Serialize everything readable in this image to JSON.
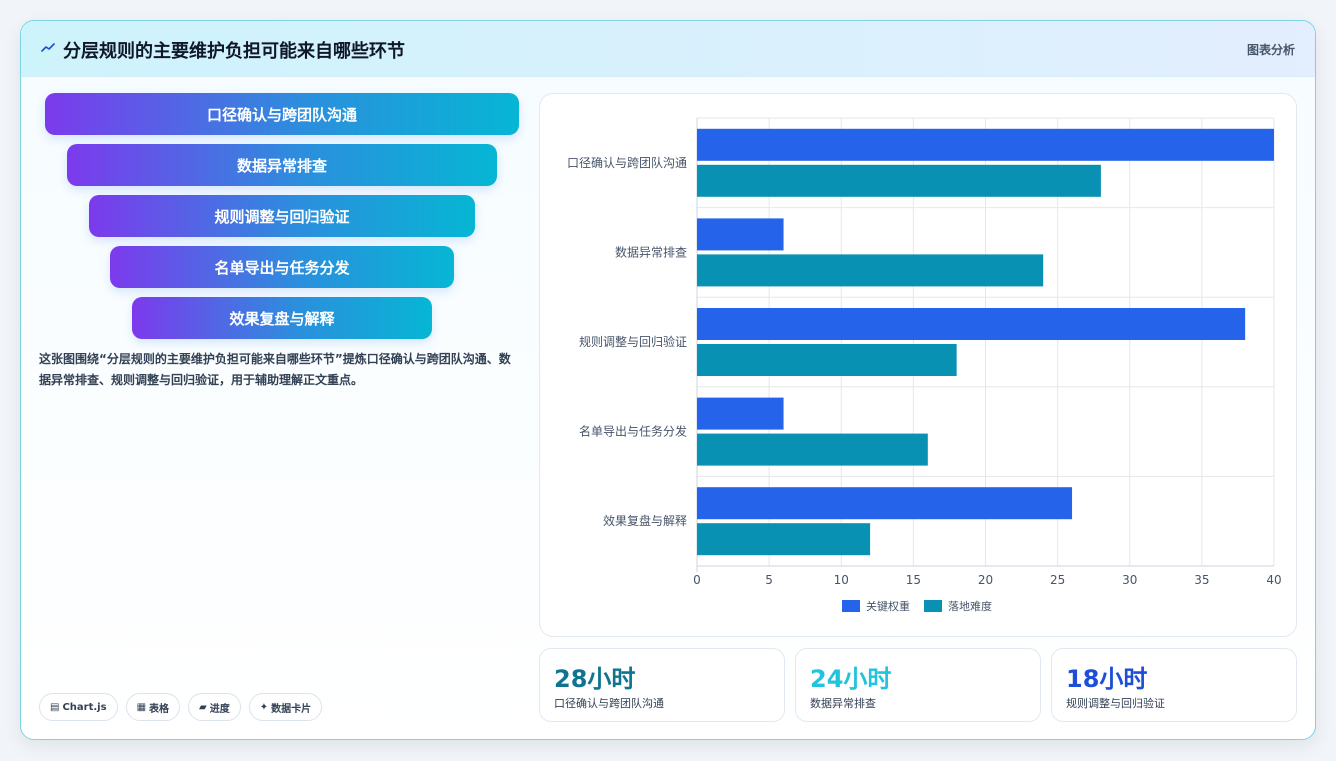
{
  "header": {
    "title": "分层规则的主要维护负担可能来自哪些环节",
    "right_label": "图表分析",
    "icon": "sparkline-icon"
  },
  "funnel": {
    "items": [
      "口径确认与跨团队沟通",
      "数据异常排查",
      "规则调整与回归验证",
      "名单导出与任务分发",
      "效果复盘与解释"
    ]
  },
  "description": "这张图围绕“分层规则的主要维护负担可能来自哪些环节”提炼口径确认与跨团队沟通、数据异常排查、规则调整与回归验证，用于辅助理解正文重点。",
  "tags": [
    {
      "icon": "chart-icon",
      "glyph": "▤",
      "label": "Chart.js"
    },
    {
      "icon": "table-icon",
      "glyph": "▦",
      "label": "表格"
    },
    {
      "icon": "progress-icon",
      "glyph": "▰",
      "label": "进度"
    },
    {
      "icon": "sparkle-icon",
      "glyph": "✦",
      "label": "数据卡片"
    }
  ],
  "stats": [
    {
      "value": "28小时",
      "label": "口径确认与跨团队沟通",
      "color": "#0e7490"
    },
    {
      "value": "24小时",
      "label": "数据异常排查",
      "color": "#22c3dd"
    },
    {
      "value": "18小时",
      "label": "规则调整与回归验证",
      "color": "#1d4ed8"
    }
  ],
  "chart_data": {
    "type": "bar",
    "orientation": "horizontal",
    "categories": [
      "口径确认与跨团队沟通",
      "数据异常排查",
      "规则调整与回归验证",
      "名单导出与任务分发",
      "效果复盘与解释"
    ],
    "series": [
      {
        "name": "关键权重",
        "values": [
          40,
          6,
          38,
          6,
          26
        ],
        "color": "#2563eb"
      },
      {
        "name": "落地难度",
        "values": [
          28,
          24,
          18,
          16,
          12
        ],
        "color": "#0891b2"
      }
    ],
    "xlim": [
      0,
      40
    ],
    "xticks": [
      0,
      5,
      10,
      15,
      20,
      25,
      30,
      35,
      40
    ],
    "grid": true,
    "legend_position": "bottom"
  }
}
